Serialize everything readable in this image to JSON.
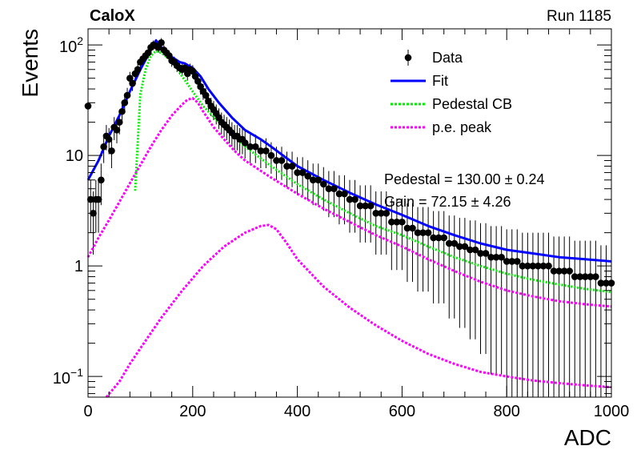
{
  "header": {
    "experiment": "CaloX",
    "run": "Run 1185"
  },
  "chart_data": {
    "type": "scatter",
    "xlabel": "ADC",
    "ylabel": "Events",
    "xlim": [
      0,
      1000
    ],
    "ylim": [
      0.065,
      140
    ],
    "yscale": "log",
    "x_ticks": [
      "0",
      "200",
      "400",
      "600",
      "800",
      "1000"
    ],
    "y_ticks": [
      {
        "value": 100,
        "base": "10",
        "exp": "2"
      },
      {
        "value": 10,
        "label": "10"
      },
      {
        "value": 1,
        "label": "1"
      },
      {
        "value": 0.1,
        "base": "10",
        "exp": "−1"
      }
    ],
    "legend_position": "top-right",
    "legend": [
      {
        "label": "Data",
        "style": "marker",
        "color": "#000000"
      },
      {
        "label": "Fit",
        "style": "solid",
        "color": "#0000ff"
      },
      {
        "label": "Pedestal CB",
        "style": "dotted",
        "color": "#00ee00"
      },
      {
        "label": "p.e. peak",
        "style": "dotted",
        "color": "#ff00ff"
      }
    ],
    "annotations": [
      "Pedestal = 130.00 ± 0.24",
      "Gain = 72.15 ± 4.26"
    ],
    "data_points": [
      [
        0,
        28
      ],
      [
        5,
        4
      ],
      [
        10,
        3
      ],
      [
        15,
        4
      ],
      [
        20,
        4
      ],
      [
        25,
        6
      ],
      [
        30,
        12
      ],
      [
        35,
        15
      ],
      [
        40,
        14
      ],
      [
        45,
        11
      ],
      [
        50,
        18
      ],
      [
        55,
        17
      ],
      [
        60,
        20
      ],
      [
        65,
        25
      ],
      [
        70,
        30
      ],
      [
        75,
        35
      ],
      [
        80,
        50
      ],
      [
        85,
        45
      ],
      [
        90,
        55
      ],
      [
        95,
        60
      ],
      [
        100,
        70
      ],
      [
        105,
        75
      ],
      [
        110,
        80
      ],
      [
        115,
        85
      ],
      [
        120,
        95
      ],
      [
        125,
        100
      ],
      [
        130,
        98
      ],
      [
        135,
        95
      ],
      [
        140,
        105
      ],
      [
        145,
        90
      ],
      [
        150,
        85
      ],
      [
        155,
        80
      ],
      [
        160,
        72
      ],
      [
        165,
        70
      ],
      [
        170,
        65
      ],
      [
        175,
        62
      ],
      [
        180,
        60
      ],
      [
        185,
        62
      ],
      [
        190,
        55
      ],
      [
        195,
        60
      ],
      [
        200,
        58
      ],
      [
        205,
        52
      ],
      [
        210,
        47
      ],
      [
        215,
        42
      ],
      [
        220,
        38
      ],
      [
        225,
        35
      ],
      [
        230,
        31
      ],
      [
        235,
        28
      ],
      [
        240,
        26
      ],
      [
        245,
        24
      ],
      [
        250,
        22
      ],
      [
        255,
        20
      ],
      [
        260,
        19
      ],
      [
        265,
        18
      ],
      [
        270,
        17
      ],
      [
        275,
        16
      ],
      [
        280,
        15
      ],
      [
        285,
        15
      ],
      [
        290,
        14
      ],
      [
        295,
        14
      ],
      [
        300,
        13
      ],
      [
        310,
        12
      ],
      [
        320,
        12
      ],
      [
        330,
        11
      ],
      [
        340,
        11
      ],
      [
        350,
        10
      ],
      [
        360,
        9
      ],
      [
        370,
        9
      ],
      [
        380,
        8
      ],
      [
        390,
        8
      ],
      [
        400,
        7
      ],
      [
        410,
        7
      ],
      [
        420,
        6.5
      ],
      [
        430,
        6
      ],
      [
        440,
        6
      ],
      [
        450,
        5.5
      ],
      [
        460,
        5
      ],
      [
        470,
        5
      ],
      [
        480,
        4.5
      ],
      [
        490,
        4.5
      ],
      [
        500,
        4
      ],
      [
        510,
        4
      ],
      [
        520,
        3.5
      ],
      [
        530,
        3.5
      ],
      [
        540,
        3.5
      ],
      [
        550,
        3
      ],
      [
        560,
        3
      ],
      [
        570,
        3
      ],
      [
        580,
        2.5
      ],
      [
        590,
        2.5
      ],
      [
        600,
        2.5
      ],
      [
        610,
        2.2
      ],
      [
        620,
        2.2
      ],
      [
        630,
        2
      ],
      [
        640,
        2
      ],
      [
        650,
        2
      ],
      [
        660,
        1.8
      ],
      [
        670,
        1.8
      ],
      [
        680,
        1.8
      ],
      [
        690,
        1.6
      ],
      [
        700,
        1.6
      ],
      [
        710,
        1.5
      ],
      [
        720,
        1.5
      ],
      [
        730,
        1.4
      ],
      [
        740,
        1.4
      ],
      [
        750,
        1.3
      ],
      [
        760,
        1.3
      ],
      [
        770,
        1.2
      ],
      [
        780,
        1.2
      ],
      [
        790,
        1.2
      ],
      [
        800,
        1.1
      ],
      [
        810,
        1.1
      ],
      [
        820,
        1.1
      ],
      [
        830,
        1.0
      ],
      [
        840,
        1.0
      ],
      [
        850,
        1.0
      ],
      [
        860,
        1.0
      ],
      [
        870,
        1.0
      ],
      [
        880,
        1.0
      ],
      [
        890,
        0.9
      ],
      [
        900,
        0.9
      ],
      [
        910,
        0.9
      ],
      [
        920,
        0.9
      ],
      [
        930,
        0.8
      ],
      [
        940,
        0.8
      ],
      [
        950,
        0.8
      ],
      [
        960,
        0.8
      ],
      [
        970,
        0.8
      ],
      [
        980,
        0.7
      ],
      [
        990,
        0.7
      ],
      [
        1000,
        0.7
      ]
    ],
    "curves": {
      "fit": [
        [
          0,
          6
        ],
        [
          20,
          9
        ],
        [
          40,
          15
        ],
        [
          60,
          23
        ],
        [
          80,
          38
        ],
        [
          100,
          60
        ],
        [
          120,
          90
        ],
        [
          130,
          110
        ],
        [
          140,
          95
        ],
        [
          160,
          78
        ],
        [
          175,
          70
        ],
        [
          185,
          68
        ],
        [
          200,
          62
        ],
        [
          215,
          52
        ],
        [
          230,
          40
        ],
        [
          250,
          30
        ],
        [
          275,
          22
        ],
        [
          300,
          17
        ],
        [
          330,
          14
        ],
        [
          350,
          12
        ],
        [
          400,
          8
        ],
        [
          450,
          6
        ],
        [
          500,
          4.6
        ],
        [
          550,
          3.6
        ],
        [
          600,
          2.9
        ],
        [
          650,
          2.3
        ],
        [
          700,
          1.9
        ],
        [
          750,
          1.6
        ],
        [
          800,
          1.4
        ],
        [
          850,
          1.3
        ],
        [
          900,
          1.2
        ],
        [
          950,
          1.15
        ],
        [
          1000,
          1.1
        ]
      ],
      "pedestal_cb": [
        [
          90,
          4.8
        ],
        [
          100,
          36
        ],
        [
          110,
          60
        ],
        [
          120,
          80
        ],
        [
          130,
          88
        ],
        [
          140,
          85
        ],
        [
          160,
          72
        ],
        [
          180,
          52
        ],
        [
          200,
          38
        ],
        [
          220,
          28
        ],
        [
          250,
          20
        ],
        [
          300,
          12
        ],
        [
          350,
          8
        ],
        [
          400,
          5.5
        ],
        [
          450,
          4
        ],
        [
          500,
          3
        ],
        [
          550,
          2.3
        ],
        [
          600,
          1.9
        ],
        [
          650,
          1.5
        ],
        [
          700,
          1.2
        ],
        [
          750,
          1.0
        ],
        [
          800,
          0.85
        ],
        [
          850,
          0.75
        ],
        [
          900,
          0.68
        ],
        [
          950,
          0.62
        ],
        [
          1000,
          0.58
        ]
      ],
      "pe_peak_1": [
        [
          0,
          1.2
        ],
        [
          20,
          1.8
        ],
        [
          40,
          2.6
        ],
        [
          60,
          3.8
        ],
        [
          80,
          5.6
        ],
        [
          100,
          8.2
        ],
        [
          120,
          12
        ],
        [
          140,
          17
        ],
        [
          160,
          23
        ],
        [
          180,
          29
        ],
        [
          190,
          32
        ],
        [
          200,
          33
        ],
        [
          210,
          30
        ],
        [
          220,
          25
        ],
        [
          240,
          18
        ],
        [
          260,
          14
        ],
        [
          280,
          11
        ],
        [
          300,
          9
        ],
        [
          350,
          6.3
        ],
        [
          400,
          4.5
        ],
        [
          450,
          3.3
        ],
        [
          500,
          2.5
        ],
        [
          550,
          1.9
        ],
        [
          600,
          1.5
        ],
        [
          650,
          1.15
        ],
        [
          700,
          0.9
        ],
        [
          750,
          0.72
        ],
        [
          800,
          0.6
        ],
        [
          850,
          0.53
        ],
        [
          900,
          0.48
        ],
        [
          950,
          0.45
        ],
        [
          1000,
          0.43
        ]
      ],
      "pe_peak_2": [
        [
          35,
          0.065
        ],
        [
          60,
          0.09
        ],
        [
          80,
          0.13
        ],
        [
          100,
          0.18
        ],
        [
          140,
          0.34
        ],
        [
          180,
          0.6
        ],
        [
          220,
          1.0
        ],
        [
          260,
          1.5
        ],
        [
          300,
          2.0
        ],
        [
          330,
          2.3
        ],
        [
          345,
          2.35
        ],
        [
          360,
          2.15
        ],
        [
          380,
          1.6
        ],
        [
          400,
          1.15
        ],
        [
          450,
          0.65
        ],
        [
          500,
          0.42
        ],
        [
          550,
          0.29
        ],
        [
          600,
          0.21
        ],
        [
          650,
          0.16
        ],
        [
          700,
          0.13
        ],
        [
          750,
          0.11
        ],
        [
          800,
          0.1
        ],
        [
          850,
          0.092
        ],
        [
          900,
          0.087
        ],
        [
          950,
          0.083
        ],
        [
          1000,
          0.08
        ]
      ]
    }
  }
}
